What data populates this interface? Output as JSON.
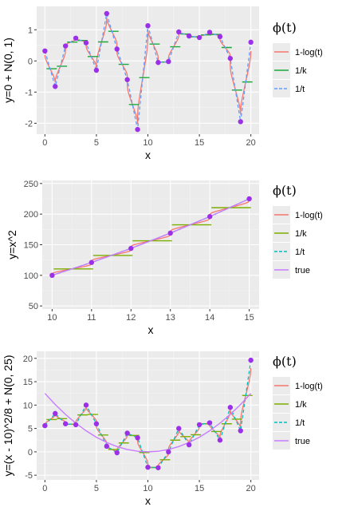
{
  "chart_data": [
    {
      "type": "line",
      "xlabel": "x",
      "ylabel": "y=0 + N(0, 1)",
      "xlim": [
        -0.8,
        20.8
      ],
      "ylim": [
        -2.35,
        1.75
      ],
      "xticks": [
        0,
        5,
        10,
        15,
        20
      ],
      "xtick_labels": [
        "0",
        "5",
        "10",
        "15",
        "20"
      ],
      "yticks": [
        -2,
        -1,
        0,
        1
      ],
      "ytick_labels": [
        "-2",
        "-1",
        "0",
        "1"
      ],
      "grid": true,
      "legend": {
        "title": "ϕ(t)",
        "position": "right"
      },
      "points": {
        "color": "#9b30e8",
        "x": [
          0,
          1,
          2,
          3,
          4,
          5,
          6,
          7,
          8,
          9,
          10,
          11,
          12,
          13,
          14,
          15,
          16,
          17,
          18,
          19,
          20
        ],
        "y": [
          0.32,
          -0.82,
          0.48,
          0.73,
          0.58,
          -0.3,
          1.52,
          0.38,
          -0.6,
          -2.2,
          1.13,
          -0.05,
          -0.02,
          0.93,
          0.8,
          0.75,
          0.92,
          0.78,
          0.08,
          -1.95,
          0.6
        ]
      },
      "series": [
        {
          "name": "1-log(t)",
          "style": "log",
          "color": "#f8766d"
        },
        {
          "name": "1/k",
          "style": "step",
          "color": "#1aaa3a"
        },
        {
          "name": "1/t",
          "style": "dashed",
          "color": "#619cff"
        }
      ]
    },
    {
      "type": "line",
      "xlabel": "x",
      "ylabel": "y=x^2",
      "xlim": [
        9.75,
        15.25
      ],
      "ylim": [
        45,
        255
      ],
      "xticks": [
        10,
        11,
        12,
        13,
        14,
        15
      ],
      "xtick_labels": [
        "10",
        "11",
        "12",
        "13",
        "14",
        "15"
      ],
      "yticks": [
        50,
        100,
        150,
        200,
        250
      ],
      "ytick_labels": [
        "50",
        "100",
        "150",
        "200",
        "250"
      ],
      "grid": true,
      "legend": {
        "title": "ϕ(t)",
        "position": "right"
      },
      "points": {
        "color": "#9b30e8",
        "x": [
          10,
          11,
          12,
          13,
          14,
          15
        ],
        "y": [
          100,
          121,
          144,
          169,
          196,
          225
        ]
      },
      "series": [
        {
          "name": "1-log(t)",
          "style": "log",
          "color": "#f8766d"
        },
        {
          "name": "1/k",
          "style": "step",
          "color": "#7cae00"
        },
        {
          "name": "1/t",
          "style": "dashed",
          "color": "#00bfc4"
        },
        {
          "name": "true",
          "style": "true",
          "color": "#c77cff",
          "x": [
            10,
            11,
            12,
            13,
            14,
            15
          ],
          "y": [
            100,
            121,
            144,
            169,
            196,
            225
          ]
        }
      ]
    },
    {
      "type": "line",
      "xlabel": "x",
      "ylabel": "y=(x - 10)^2/8 + N(0, 25)",
      "xlim": [
        -0.8,
        20.8
      ],
      "ylim": [
        -6,
        21.5
      ],
      "xticks": [
        0,
        5,
        10,
        15,
        20
      ],
      "xtick_labels": [
        "0",
        "5",
        "10",
        "15",
        "20"
      ],
      "yticks": [
        -5,
        0,
        5,
        10,
        15,
        20
      ],
      "ytick_labels": [
        "-5",
        "0",
        "5",
        "10",
        "15",
        "20"
      ],
      "grid": true,
      "legend": {
        "title": "ϕ(t)",
        "position": "right"
      },
      "points": {
        "color": "#9b30e8",
        "x": [
          0,
          1,
          2,
          3,
          4,
          5,
          6,
          7,
          8,
          9,
          10,
          11,
          12,
          13,
          14,
          15,
          16,
          17,
          18,
          19,
          20
        ],
        "y": [
          5.6,
          8.2,
          6.0,
          5.8,
          10.0,
          6.0,
          1.2,
          -0.2,
          4.0,
          3.0,
          -3.3,
          -3.4,
          0.0,
          5.0,
          1.5,
          5.8,
          6.2,
          2.5,
          9.5,
          4.5,
          19.6
        ]
      },
      "series": [
        {
          "name": "1-log(t)",
          "style": "log",
          "color": "#f8766d"
        },
        {
          "name": "1/k",
          "style": "step",
          "color": "#7cae00"
        },
        {
          "name": "1/t",
          "style": "dashed",
          "color": "#00bfc4"
        },
        {
          "name": "true",
          "style": "true",
          "color": "#c77cff",
          "x": [
            0,
            1,
            2,
            3,
            4,
            5,
            6,
            7,
            8,
            9,
            10,
            11,
            12,
            13,
            14,
            15,
            16,
            17,
            18,
            19,
            20
          ],
          "y": [
            12.5,
            10.125,
            8.0,
            6.125,
            4.5,
            3.125,
            2.0,
            1.125,
            0.5,
            0.125,
            0.0,
            0.125,
            0.5,
            1.125,
            2.0,
            3.125,
            4.5,
            6.125,
            8.0,
            10.125,
            12.5
          ]
        }
      ]
    }
  ]
}
